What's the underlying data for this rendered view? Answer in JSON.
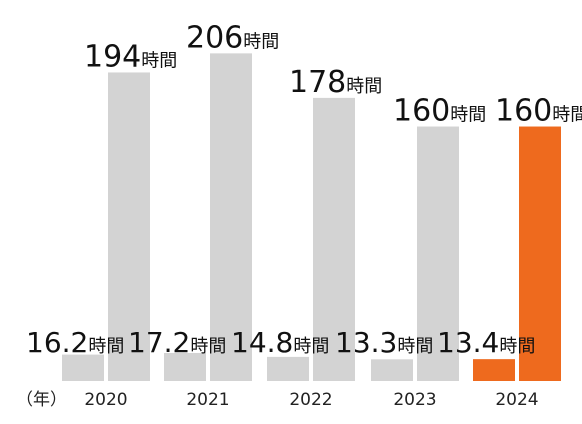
{
  "chart_data": {
    "type": "bar",
    "x_unit_label": "（年）",
    "categories": [
      "2020",
      "2021",
      "2022",
      "2023",
      "2024"
    ],
    "series": [
      {
        "values": [
          16.2,
          17.2,
          14.8,
          13.3,
          13.4
        ]
      },
      {
        "values": [
          194,
          206,
          178,
          160,
          160
        ]
      }
    ],
    "value_unit": "時間",
    "ylim": [
      0,
      210
    ],
    "grid": false,
    "legend": "none",
    "colors": {
      "default_bar": "#d3d3d3",
      "highlight_bar": "#ee6a1e"
    },
    "highlight_category": "2024"
  }
}
